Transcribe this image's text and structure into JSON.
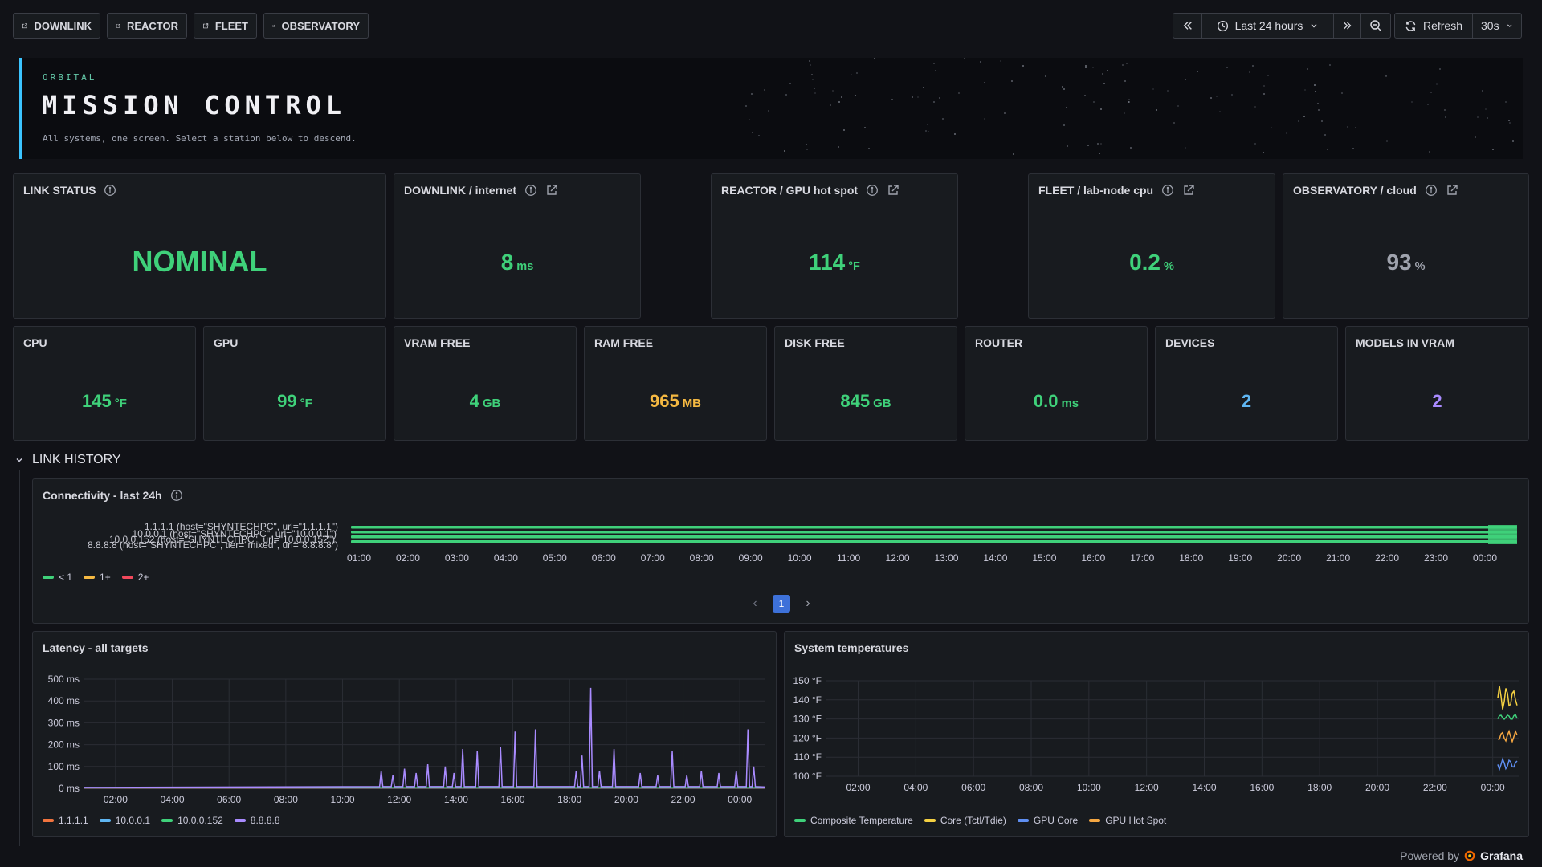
{
  "nav": {
    "links": [
      {
        "label": "DOWNLINK"
      },
      {
        "label": "REACTOR"
      },
      {
        "label": "FLEET"
      },
      {
        "label": "OBSERVATORY"
      }
    ],
    "time_range": "Last 24 hours",
    "refresh_label": "Refresh",
    "refresh_interval": "30s"
  },
  "hero": {
    "kicker": "ORBITAL",
    "title": "MISSION CONTROL",
    "subtitle": "All systems, one screen. Select a station below to descend."
  },
  "stats_row1": [
    {
      "title": "LINK STATUS",
      "value": "NOMINAL",
      "unit": "",
      "color": "#3fd17a"
    },
    {
      "title": "DOWNLINK / internet",
      "value": "8",
      "unit": "ms",
      "color": "#3fd17a"
    },
    {
      "title": "REACTOR / GPU hot spot",
      "value": "114",
      "unit": "°F",
      "color": "#3fd17a"
    },
    {
      "title": "FLEET / lab-node cpu",
      "value": "0.2",
      "unit": "%",
      "color": "#3fd17a"
    },
    {
      "title": "OBSERVATORY / cloud",
      "value": "93",
      "unit": "%",
      "color": "#9fa3ad"
    }
  ],
  "stats_row2": [
    {
      "title": "CPU",
      "value": "145",
      "unit": "°F",
      "color": "#3fd17a"
    },
    {
      "title": "GPU",
      "value": "99",
      "unit": "°F",
      "color": "#3fd17a"
    },
    {
      "title": "VRAM FREE",
      "value": "4",
      "unit": "GB",
      "color": "#3fd17a"
    },
    {
      "title": "RAM FREE",
      "value": "965",
      "unit": "MB",
      "color": "#f5b942"
    },
    {
      "title": "DISK FREE",
      "value": "845",
      "unit": "GB",
      "color": "#3fd17a"
    },
    {
      "title": "ROUTER",
      "value": "0.0",
      "unit": "ms",
      "color": "#3fd17a"
    },
    {
      "title": "DEVICES",
      "value": "2",
      "unit": "",
      "color": "#5fb6f2"
    },
    {
      "title": "MODELS IN VRAM",
      "value": "2",
      "unit": "",
      "color": "#a98bff"
    }
  ],
  "section": {
    "title": "LINK HISTORY"
  },
  "connectivity": {
    "title": "Connectivity - last 24h",
    "rows": [
      "1.1.1.1 (host=\"SHYNTECHPC\", url=\"1.1.1.1\")",
      "10.0.0.1 (host=\"SHYNTECHPC\", url=\"10.0.0.1\")",
      "10.0.0.152 (host=\"SHYNTECHPC\", url=\"10.0.0.152\")",
      "8.8.8.8 (host=\"SHYNTECHPC\", tier=\"mixed\", url=\"8.8.8.8\")"
    ],
    "x_ticks": [
      "01:00",
      "02:00",
      "03:00",
      "04:00",
      "05:00",
      "06:00",
      "07:00",
      "08:00",
      "09:00",
      "10:00",
      "11:00",
      "12:00",
      "13:00",
      "14:00",
      "15:00",
      "16:00",
      "17:00",
      "18:00",
      "19:00",
      "20:00",
      "21:00",
      "22:00",
      "23:00",
      "00:00"
    ],
    "legend": [
      {
        "label": "< 1",
        "color": "#3fd17a"
      },
      {
        "label": "1+",
        "color": "#f5b942"
      },
      {
        "label": "2+",
        "color": "#f2495c"
      }
    ],
    "page": "1",
    "prev": "‹",
    "next": "›"
  },
  "chart_data": [
    {
      "type": "line",
      "title": "Latency - all targets",
      "x": [
        "02:00",
        "04:00",
        "06:00",
        "08:00",
        "10:00",
        "12:00",
        "14:00",
        "16:00",
        "18:00",
        "20:00",
        "22:00",
        "00:00"
      ],
      "y_ticks": [
        "500 ms",
        "400 ms",
        "300 ms",
        "200 ms",
        "100 ms",
        "0 ms"
      ],
      "ylim": [
        0,
        500
      ],
      "series": [
        {
          "name": "1.1.1.1",
          "color": "#f2743e"
        },
        {
          "name": "10.0.0.1",
          "color": "#5fb6f2"
        },
        {
          "name": "10.0.0.152",
          "color": "#3fd17a"
        },
        {
          "name": "8.8.8.8",
          "color": "#a98bff",
          "spikes": [
            [
              11.1,
              80
            ],
            [
              11.5,
              60
            ],
            [
              11.9,
              90
            ],
            [
              12.3,
              70
            ],
            [
              12.7,
              110
            ],
            [
              13.3,
              100
            ],
            [
              13.6,
              70
            ],
            [
              13.9,
              180
            ],
            [
              14.4,
              170
            ],
            [
              15.2,
              190
            ],
            [
              15.7,
              260
            ],
            [
              16.4,
              270
            ],
            [
              17.8,
              80
            ],
            [
              18.0,
              150
            ],
            [
              18.3,
              460
            ],
            [
              18.6,
              80
            ],
            [
              19.1,
              180
            ],
            [
              20.0,
              70
            ],
            [
              20.6,
              60
            ],
            [
              21.1,
              170
            ],
            [
              21.6,
              60
            ],
            [
              22.1,
              80
            ],
            [
              22.7,
              70
            ],
            [
              23.3,
              80
            ],
            [
              23.7,
              270
            ],
            [
              23.9,
              100
            ]
          ]
        }
      ]
    },
    {
      "type": "line",
      "title": "System temperatures",
      "x": [
        "02:00",
        "04:00",
        "06:00",
        "08:00",
        "10:00",
        "12:00",
        "14:00",
        "16:00",
        "18:00",
        "20:00",
        "22:00",
        "00:00"
      ],
      "y_ticks": [
        "150 °F",
        "140 °F",
        "130 °F",
        "120 °F",
        "110 °F",
        "100 °F"
      ],
      "ylim": [
        95,
        150
      ],
      "series": [
        {
          "name": "Composite Temperature",
          "color": "#3fd17a"
        },
        {
          "name": "Core (Tctl/Tdie)",
          "color": "#f5d142"
        },
        {
          "name": "GPU Core",
          "color": "#5f8ff2"
        },
        {
          "name": "GPU Hot Spot",
          "color": "#f5a742"
        }
      ]
    }
  ],
  "footer": {
    "powered": "Powered by",
    "brand": "Grafana"
  }
}
